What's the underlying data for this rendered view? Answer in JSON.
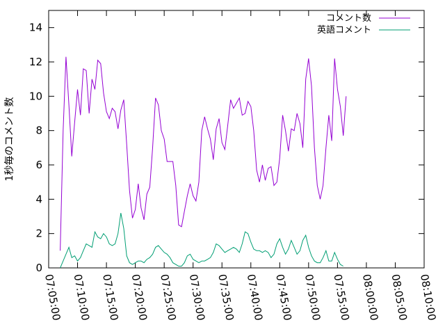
{
  "chart_data": {
    "type": "line",
    "ylabel": "1秒毎のコメント数",
    "xlim": [
      "07:05:00",
      "08:10:00"
    ],
    "ylim": [
      0,
      15
    ],
    "x_ticks": [
      "07:05:00",
      "07:10:00",
      "07:15:00",
      "07:20:00",
      "07:25:00",
      "07:30:00",
      "07:35:00",
      "07:40:00",
      "07:45:00",
      "07:50:00",
      "07:55:00",
      "08:00:00",
      "08:05:00",
      "08:10:00"
    ],
    "y_ticks": [
      0,
      2,
      4,
      6,
      8,
      10,
      12,
      14
    ],
    "legend_position": "top-right",
    "grid": false,
    "series": [
      {
        "name": "コメント数",
        "color": "#9400d3",
        "points": [
          [
            "07:07:00",
            1.0
          ],
          [
            "07:07:30",
            8.0
          ],
          [
            "07:08:00",
            12.3
          ],
          [
            "07:08:30",
            9.5
          ],
          [
            "07:09:00",
            6.5
          ],
          [
            "07:09:30",
            8.5
          ],
          [
            "07:10:00",
            10.4
          ],
          [
            "07:10:30",
            8.9
          ],
          [
            "07:11:00",
            11.6
          ],
          [
            "07:11:30",
            11.5
          ],
          [
            "07:12:00",
            9.0
          ],
          [
            "07:12:30",
            11.0
          ],
          [
            "07:13:00",
            10.4
          ],
          [
            "07:13:30",
            12.1
          ],
          [
            "07:14:00",
            11.9
          ],
          [
            "07:14:30",
            10.2
          ],
          [
            "07:15:00",
            9.1
          ],
          [
            "07:15:30",
            8.7
          ],
          [
            "07:16:00",
            9.3
          ],
          [
            "07:16:30",
            9.1
          ],
          [
            "07:17:00",
            8.1
          ],
          [
            "07:17:30",
            9.2
          ],
          [
            "07:18:00",
            9.8
          ],
          [
            "07:18:30",
            7.2
          ],
          [
            "07:19:00",
            4.5
          ],
          [
            "07:19:30",
            2.9
          ],
          [
            "07:20:00",
            3.4
          ],
          [
            "07:20:30",
            4.9
          ],
          [
            "07:21:00",
            3.5
          ],
          [
            "07:21:30",
            2.8
          ],
          [
            "07:22:00",
            4.3
          ],
          [
            "07:22:30",
            4.7
          ],
          [
            "07:23:00",
            7.0
          ],
          [
            "07:23:30",
            9.9
          ],
          [
            "07:24:00",
            9.5
          ],
          [
            "07:24:30",
            8.0
          ],
          [
            "07:25:00",
            7.5
          ],
          [
            "07:25:30",
            6.2
          ],
          [
            "07:26:00",
            6.2
          ],
          [
            "07:26:30",
            6.2
          ],
          [
            "07:27:00",
            4.8
          ],
          [
            "07:27:30",
            2.5
          ],
          [
            "07:28:00",
            2.4
          ],
          [
            "07:28:30",
            3.3
          ],
          [
            "07:29:00",
            4.2
          ],
          [
            "07:29:30",
            4.9
          ],
          [
            "07:30:00",
            4.2
          ],
          [
            "07:30:30",
            3.9
          ],
          [
            "07:31:00",
            5.0
          ],
          [
            "07:31:30",
            8.0
          ],
          [
            "07:32:00",
            8.8
          ],
          [
            "07:32:30",
            8.1
          ],
          [
            "07:33:00",
            7.5
          ],
          [
            "07:33:30",
            6.3
          ],
          [
            "07:34:00",
            8.1
          ],
          [
            "07:34:30",
            8.7
          ],
          [
            "07:35:00",
            7.3
          ],
          [
            "07:35:30",
            6.9
          ],
          [
            "07:36:00",
            8.3
          ],
          [
            "07:36:30",
            9.8
          ],
          [
            "07:37:00",
            9.3
          ],
          [
            "07:37:30",
            9.6
          ],
          [
            "07:38:00",
            9.9
          ],
          [
            "07:38:30",
            8.9
          ],
          [
            "07:39:00",
            9.0
          ],
          [
            "07:39:30",
            9.7
          ],
          [
            "07:40:00",
            9.4
          ],
          [
            "07:40:30",
            8.0
          ],
          [
            "07:41:00",
            5.7
          ],
          [
            "07:41:30",
            5.0
          ],
          [
            "07:42:00",
            6.0
          ],
          [
            "07:42:30",
            5.1
          ],
          [
            "07:43:00",
            5.8
          ],
          [
            "07:43:30",
            5.9
          ],
          [
            "07:44:00",
            4.8
          ],
          [
            "07:44:30",
            5.0
          ],
          [
            "07:45:00",
            6.4
          ],
          [
            "07:45:30",
            8.9
          ],
          [
            "07:46:00",
            8.0
          ],
          [
            "07:46:30",
            6.8
          ],
          [
            "07:47:00",
            8.1
          ],
          [
            "07:47:30",
            8.0
          ],
          [
            "07:48:00",
            9.0
          ],
          [
            "07:48:30",
            8.4
          ],
          [
            "07:49:00",
            7.0
          ],
          [
            "07:49:30",
            11.0
          ],
          [
            "07:50:00",
            12.2
          ],
          [
            "07:50:30",
            10.6
          ],
          [
            "07:51:00",
            7.0
          ],
          [
            "07:51:30",
            4.8
          ],
          [
            "07:52:00",
            4.0
          ],
          [
            "07:52:30",
            4.8
          ],
          [
            "07:53:00",
            7.0
          ],
          [
            "07:53:30",
            8.9
          ],
          [
            "07:54:00",
            7.4
          ],
          [
            "07:54:30",
            12.2
          ],
          [
            "07:55:00",
            10.4
          ],
          [
            "07:55:30",
            9.4
          ],
          [
            "07:56:00",
            7.7
          ],
          [
            "07:56:30",
            10.0
          ]
        ]
      },
      {
        "name": "英語コメント",
        "color": "#009e73",
        "points": [
          [
            "07:07:00",
            0.0
          ],
          [
            "07:07:30",
            0.4
          ],
          [
            "07:08:00",
            0.8
          ],
          [
            "07:08:30",
            1.2
          ],
          [
            "07:09:00",
            0.6
          ],
          [
            "07:09:30",
            0.7
          ],
          [
            "07:10:00",
            0.4
          ],
          [
            "07:10:30",
            0.6
          ],
          [
            "07:11:00",
            1.0
          ],
          [
            "07:11:30",
            1.4
          ],
          [
            "07:12:00",
            1.3
          ],
          [
            "07:12:30",
            1.2
          ],
          [
            "07:13:00",
            2.1
          ],
          [
            "07:13:30",
            1.8
          ],
          [
            "07:14:00",
            1.7
          ],
          [
            "07:14:30",
            2.0
          ],
          [
            "07:15:00",
            1.8
          ],
          [
            "07:15:30",
            1.4
          ],
          [
            "07:16:00",
            1.3
          ],
          [
            "07:16:30",
            1.4
          ],
          [
            "07:17:00",
            2.0
          ],
          [
            "07:17:30",
            3.2
          ],
          [
            "07:18:00",
            2.3
          ],
          [
            "07:18:30",
            0.7
          ],
          [
            "07:19:00",
            0.3
          ],
          [
            "07:19:30",
            0.2
          ],
          [
            "07:20:00",
            0.3
          ],
          [
            "07:20:30",
            0.4
          ],
          [
            "07:21:00",
            0.4
          ],
          [
            "07:21:30",
            0.3
          ],
          [
            "07:22:00",
            0.5
          ],
          [
            "07:22:30",
            0.6
          ],
          [
            "07:23:00",
            0.8
          ],
          [
            "07:23:30",
            1.2
          ],
          [
            "07:24:00",
            1.3
          ],
          [
            "07:24:30",
            1.1
          ],
          [
            "07:25:00",
            0.9
          ],
          [
            "07:25:30",
            0.8
          ],
          [
            "07:26:00",
            0.6
          ],
          [
            "07:26:30",
            0.3
          ],
          [
            "07:27:00",
            0.2
          ],
          [
            "07:27:30",
            0.1
          ],
          [
            "07:28:00",
            0.1
          ],
          [
            "07:28:30",
            0.3
          ],
          [
            "07:29:00",
            0.7
          ],
          [
            "07:29:30",
            0.8
          ],
          [
            "07:30:00",
            0.5
          ],
          [
            "07:30:30",
            0.4
          ],
          [
            "07:31:00",
            0.3
          ],
          [
            "07:31:30",
            0.4
          ],
          [
            "07:32:00",
            0.4
          ],
          [
            "07:32:30",
            0.5
          ],
          [
            "07:33:00",
            0.6
          ],
          [
            "07:33:30",
            0.9
          ],
          [
            "07:34:00",
            1.4
          ],
          [
            "07:34:30",
            1.3
          ],
          [
            "07:35:00",
            1.1
          ],
          [
            "07:35:30",
            0.9
          ],
          [
            "07:36:00",
            1.0
          ],
          [
            "07:36:30",
            1.1
          ],
          [
            "07:37:00",
            1.2
          ],
          [
            "07:37:30",
            1.1
          ],
          [
            "07:38:00",
            0.9
          ],
          [
            "07:38:30",
            1.4
          ],
          [
            "07:39:00",
            2.1
          ],
          [
            "07:39:30",
            2.0
          ],
          [
            "07:40:00",
            1.5
          ],
          [
            "07:40:30",
            1.1
          ],
          [
            "07:41:00",
            1.0
          ],
          [
            "07:41:30",
            1.0
          ],
          [
            "07:42:00",
            0.9
          ],
          [
            "07:42:30",
            1.0
          ],
          [
            "07:43:00",
            0.9
          ],
          [
            "07:43:30",
            0.6
          ],
          [
            "07:44:00",
            0.8
          ],
          [
            "07:44:30",
            1.4
          ],
          [
            "07:45:00",
            1.7
          ],
          [
            "07:45:30",
            1.2
          ],
          [
            "07:46:00",
            0.8
          ],
          [
            "07:46:30",
            1.1
          ],
          [
            "07:47:00",
            1.6
          ],
          [
            "07:47:30",
            1.2
          ],
          [
            "07:48:00",
            0.8
          ],
          [
            "07:48:30",
            1.0
          ],
          [
            "07:49:00",
            1.6
          ],
          [
            "07:49:30",
            1.9
          ],
          [
            "07:50:00",
            1.2
          ],
          [
            "07:50:30",
            0.7
          ],
          [
            "07:51:00",
            0.4
          ],
          [
            "07:51:30",
            0.3
          ],
          [
            "07:52:00",
            0.3
          ],
          [
            "07:52:30",
            0.6
          ],
          [
            "07:53:00",
            1.0
          ],
          [
            "07:53:30",
            0.4
          ],
          [
            "07:54:00",
            0.4
          ],
          [
            "07:54:30",
            0.9
          ],
          [
            "07:55:00",
            0.5
          ],
          [
            "07:55:30",
            0.2
          ],
          [
            "07:56:00",
            0.1
          ]
        ]
      }
    ]
  }
}
